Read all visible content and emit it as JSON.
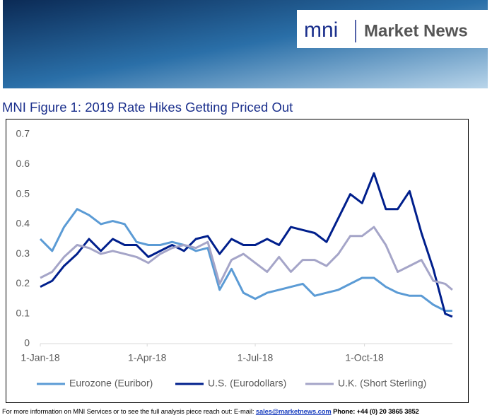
{
  "header": {
    "logo": "mni",
    "brand": "Market News"
  },
  "chart_data": {
    "type": "line",
    "title": "MNI Figure 1: 2019 Rate Hikes Getting Priced Out",
    "x": [
      "2018-01-01",
      "2018-01-11",
      "2018-01-21",
      "2018-02-01",
      "2018-02-11",
      "2018-02-21",
      "2018-03-03",
      "2018-03-13",
      "2018-03-23",
      "2018-04-02",
      "2018-04-12",
      "2018-04-22",
      "2018-05-02",
      "2018-05-12",
      "2018-05-22",
      "2018-06-01",
      "2018-06-11",
      "2018-06-21",
      "2018-07-01",
      "2018-07-11",
      "2018-07-21",
      "2018-07-31",
      "2018-08-10",
      "2018-08-20",
      "2018-08-30",
      "2018-09-09",
      "2018-09-19",
      "2018-09-29",
      "2018-10-09",
      "2018-10-19",
      "2018-10-29",
      "2018-11-08",
      "2018-11-18",
      "2018-11-28",
      "2018-12-08",
      "2018-12-14"
    ],
    "series": [
      {
        "name": "Eurozone (Euribor)",
        "color": "#5b9bd5",
        "values": [
          0.35,
          0.31,
          0.39,
          0.45,
          0.43,
          0.4,
          0.41,
          0.4,
          0.34,
          0.33,
          0.33,
          0.34,
          0.33,
          0.31,
          0.32,
          0.18,
          0.25,
          0.17,
          0.15,
          0.17,
          0.18,
          0.19,
          0.2,
          0.16,
          0.17,
          0.18,
          0.2,
          0.22,
          0.22,
          0.19,
          0.17,
          0.16,
          0.16,
          0.13,
          0.11,
          0.11
        ]
      },
      {
        "name": "U.S. (Eurodollars)",
        "color": "#001f8c",
        "values": [
          0.19,
          0.21,
          0.26,
          0.3,
          0.35,
          0.31,
          0.35,
          0.33,
          0.33,
          0.29,
          0.31,
          0.33,
          0.31,
          0.35,
          0.36,
          0.3,
          0.35,
          0.33,
          0.33,
          0.35,
          0.33,
          0.39,
          0.38,
          0.37,
          0.34,
          0.42,
          0.5,
          0.47,
          0.57,
          0.45,
          0.45,
          0.51,
          0.37,
          0.25,
          0.1,
          0.09
        ]
      },
      {
        "name": "U.K. (Short Sterling)",
        "color": "#a5a5c8",
        "values": [
          0.22,
          0.24,
          0.29,
          0.33,
          0.32,
          0.3,
          0.31,
          0.3,
          0.29,
          0.27,
          0.3,
          0.32,
          0.33,
          0.32,
          0.34,
          0.2,
          0.28,
          0.3,
          0.27,
          0.24,
          0.29,
          0.24,
          0.28,
          0.28,
          0.26,
          0.3,
          0.36,
          0.36,
          0.39,
          0.33,
          0.24,
          0.26,
          0.28,
          0.21,
          0.2,
          0.18
        ]
      }
    ],
    "xlim": [
      "2018-01-01",
      "2018-12-20"
    ],
    "xticks": [
      {
        "value": "2018-01-01",
        "label": "1-Jan-18"
      },
      {
        "value": "2018-04-01",
        "label": "1-Apr-18"
      },
      {
        "value": "2018-07-01",
        "label": "1-Jul-18"
      },
      {
        "value": "2018-10-01",
        "label": "1-Oct-18"
      }
    ],
    "ylim": [
      0,
      0.7
    ],
    "yticks": [
      0,
      0.1,
      0.2,
      0.3,
      0.4,
      0.5,
      0.6,
      0.7
    ],
    "legend": "bottom"
  },
  "footer": {
    "text": "For more information on MNI Services or to see the full analysis piece reach out: E-mail:",
    "email": "sales@marketnews.com",
    "phone": "Phone: +44 (0) 20 3865 3852"
  }
}
